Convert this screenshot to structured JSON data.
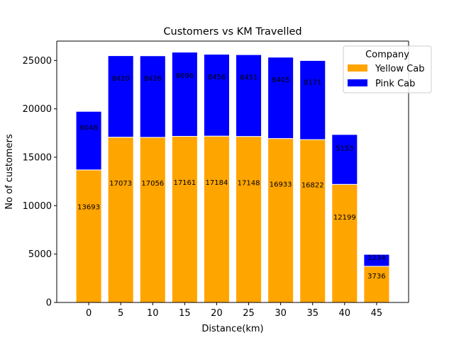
{
  "chart_data": {
    "type": "bar",
    "stacked": true,
    "title": "Customers vs KM Travelled",
    "xlabel": "Distance(km)",
    "ylabel": "No of customers",
    "categories": [
      "0",
      "5",
      "10",
      "15",
      "20",
      "25",
      "30",
      "35",
      "40",
      "45"
    ],
    "x": [
      0,
      5,
      10,
      15,
      20,
      25,
      30,
      35,
      40,
      45
    ],
    "yticks": [
      0,
      5000,
      10000,
      15000,
      20000,
      25000
    ],
    "ylim": [
      0,
      27000
    ],
    "xlim": [
      -5,
      50
    ],
    "grid": false,
    "legend": {
      "title": "Company",
      "placement": "top-right"
    },
    "series": [
      {
        "name": "Yellow Cab",
        "color": "#ffa500",
        "values": [
          13693,
          17073,
          17056,
          17161,
          17184,
          17148,
          16933,
          16822,
          12199,
          3736
        ]
      },
      {
        "name": "Pink Cab",
        "color": "#0000ff",
        "values": [
          6048,
          8420,
          8426,
          8696,
          8456,
          8451,
          8405,
          8171,
          5153,
          1234
        ]
      }
    ]
  }
}
